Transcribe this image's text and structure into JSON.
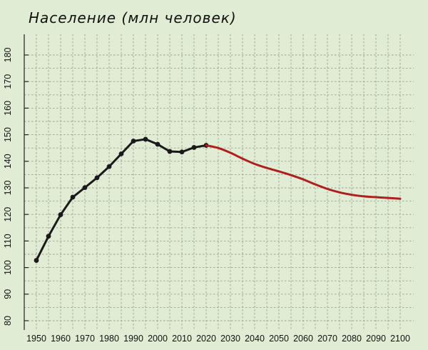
{
  "chart_data": {
    "type": "line",
    "title": "Население (млн человек)",
    "xlabel": "",
    "ylabel": "",
    "xlim": [
      1950,
      2100
    ],
    "ylim": [
      80,
      180
    ],
    "x_ticks": [
      "1950",
      "1960",
      "1970",
      "1980",
      "1990",
      "2000",
      "2010",
      "2020",
      "2030",
      "2040",
      "2050",
      "2060",
      "2070",
      "2080",
      "2090",
      "2100"
    ],
    "y_ticks": [
      "80",
      "90",
      "100",
      "110",
      "120",
      "130",
      "140",
      "150",
      "160",
      "170",
      "180"
    ],
    "grid": "dashed vertical and horizontal",
    "series": [
      {
        "kind": "historical",
        "color": "#1a1a1a",
        "markers": true,
        "x": [
          1950,
          1955,
          1960,
          1965,
          1970,
          1975,
          1980,
          1985,
          1990,
          1995,
          2000,
          2005,
          2010,
          2015,
          2020
        ],
        "y": [
          102.7,
          111.8,
          119.9,
          126.5,
          130.1,
          133.8,
          138.0,
          142.8,
          147.6,
          148.3,
          146.4,
          143.7,
          143.5,
          145.2,
          146.0
        ]
      },
      {
        "kind": "projection",
        "color": "#b01e1e",
        "markers": false,
        "x": [
          2020,
          2025,
          2030,
          2035,
          2040,
          2045,
          2050,
          2055,
          2060,
          2065,
          2070,
          2075,
          2080,
          2085,
          2090,
          2095,
          2100
        ],
        "y": [
          146.0,
          145.0,
          143.2,
          141.0,
          139.0,
          137.5,
          136.2,
          134.8,
          133.2,
          131.3,
          129.6,
          128.3,
          127.4,
          126.8,
          126.5,
          126.2,
          125.9
        ]
      }
    ]
  }
}
